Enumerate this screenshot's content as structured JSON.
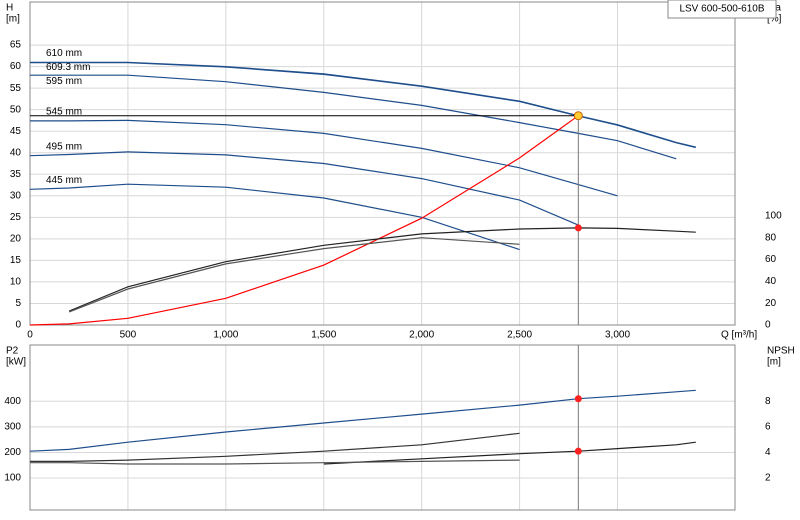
{
  "chart_data": [
    {
      "type": "line",
      "title": "LSV 600-500-610B",
      "ylabel": [
        "H",
        "[m]"
      ],
      "y2label": [
        "eta",
        "[%]"
      ],
      "xlabel": "Q [m³/h]",
      "xlim": [
        0,
        3600
      ],
      "xticks": [
        0,
        500,
        {
          "value": 1000,
          "label": "1,000"
        },
        {
          "value": 1500,
          "label": "1,500"
        },
        {
          "value": 2000,
          "label": "2,000"
        },
        {
          "value": 2500,
          "label": "2,500"
        },
        {
          "value": 3000,
          "label": "3,000"
        }
      ],
      "ylim": [
        0,
        75
      ],
      "yticks": [
        0,
        5,
        10,
        15,
        20,
        25,
        30,
        35,
        40,
        45,
        50,
        55,
        60,
        65
      ],
      "y2lim": [
        0,
        296
      ],
      "y2ticks": [
        0,
        20,
        40,
        60,
        80,
        100
      ],
      "grid": true,
      "x": [
        0,
        200,
        500,
        1000,
        1500,
        2000,
        2500,
        2800,
        3000,
        3300,
        3400
      ],
      "series": [
        {
          "name": "610 mm",
          "color": "#1f4e8c",
          "values": [
            61,
            61,
            61,
            60,
            58.3,
            55.5,
            52,
            48.6,
            46.5,
            42.4,
            41.3
          ]
        },
        {
          "name": "609.3 mm",
          "color": "#1f4e8c",
          "values": [
            60.9,
            60.9,
            60.9,
            59.9,
            58.2,
            55.4,
            51.9,
            48.5,
            46.4,
            42.3,
            41.2
          ]
        },
        {
          "name": "595 mm",
          "color": "#1f4e8c",
          "values": [
            58,
            58,
            58,
            56.5,
            54,
            51,
            47,
            44.5,
            42.8,
            38.6,
            null
          ]
        },
        {
          "name": "545 mm",
          "color": "#1f4e8c",
          "values": [
            47.4,
            47.4,
            47.5,
            46.5,
            44.5,
            41,
            36.5,
            32.6,
            30,
            null,
            null
          ]
        },
        {
          "name": "495 mm",
          "color": "#1f4e8c",
          "values": [
            39.3,
            39.6,
            40.2,
            39.5,
            37.5,
            34,
            29,
            23.2,
            null,
            null,
            null
          ]
        },
        {
          "name": "445 mm",
          "color": "#1f4e8c",
          "values": [
            31.5,
            31.8,
            32.7,
            32,
            29.5,
            25,
            17.5,
            null,
            null,
            null,
            null
          ]
        },
        {
          "color": "#ff0000",
          "values": [
            0,
            0.25,
            1.55,
            6.2,
            13.9,
            24.8,
            38.8,
            48.6,
            null,
            null,
            null
          ]
        },
        {
          "color": "#222222",
          "axis": "y2",
          "values": [
            null,
            12.8,
            35,
            58,
            73,
            83.5,
            88,
            89,
            88.5,
            86,
            85
          ]
        },
        {
          "color": "#555555",
          "axis": "y2",
          "values": [
            null,
            12,
            33,
            56,
            70,
            80,
            74,
            null,
            null,
            null,
            null
          ]
        }
      ],
      "operating_point": {
        "x": 2800,
        "y": 48.6,
        "y2": 89
      }
    },
    {
      "type": "line",
      "ylabel": [
        "P2",
        "[kW]"
      ],
      "y2label": [
        "NPSH",
        "[m]"
      ],
      "xlim": [
        0,
        3600
      ],
      "ylim": [
        -25,
        620
      ],
      "yticks": [
        100,
        200,
        300,
        400
      ],
      "y2lim": [
        -0.5,
        12.4
      ],
      "y2ticks": [
        2,
        4,
        6,
        8
      ],
      "grid": true,
      "x": [
        0,
        200,
        500,
        1000,
        1500,
        2000,
        2500,
        2800,
        3000,
        3300,
        3400
      ],
      "series": [
        {
          "color": "#1f4e8c",
          "values": [
            205,
            212,
            240,
            280,
            315,
            350,
            385,
            410,
            420,
            437,
            443
          ]
        },
        {
          "color": "#333333",
          "values": [
            165,
            165,
            170,
            185,
            205,
            230,
            275,
            null,
            null,
            null,
            null
          ]
        },
        {
          "color": "#222222",
          "axis": "y2",
          "values": [
            null,
            null,
            null,
            null,
            3.1,
            3.5,
            3.9,
            4.1,
            4.3,
            4.6,
            4.8
          ]
        },
        {
          "color": "#555555",
          "axis": "y2",
          "values": [
            3.2,
            3.2,
            3.1,
            3.1,
            3.2,
            3.3,
            3.4,
            null,
            null,
            null,
            null
          ]
        }
      ],
      "operating_point": {
        "x": 2800,
        "y": 410,
        "y2": 4.1
      }
    }
  ]
}
